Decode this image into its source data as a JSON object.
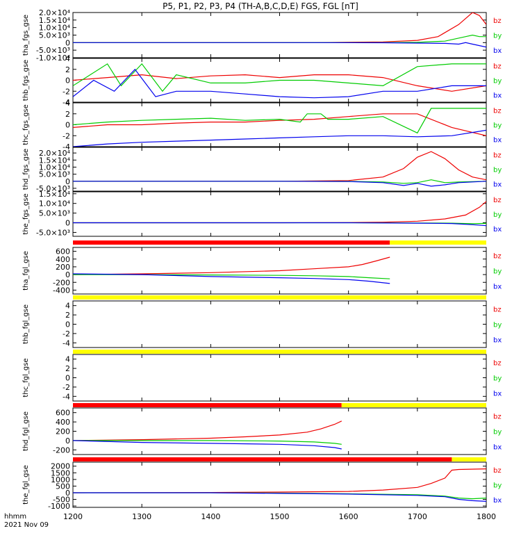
{
  "title": "P5, P1, P2, P3, P4 (TH-A,B,C,D,E) FGS, FGL [nT]",
  "footer": {
    "time_label": "hhmm",
    "date_label": "2021 Nov 09"
  },
  "colors": {
    "bx": "#0000ee",
    "by": "#00cc00",
    "bz": "#ee0000",
    "bar_red": "#ff0000",
    "bar_yellow": "#ffff00",
    "axis": "#000000"
  },
  "chart_data": {
    "type": "line",
    "x_ticks": [
      1200,
      1300,
      1400,
      1500,
      1600,
      1700,
      1800
    ],
    "x_range": [
      1200,
      1800
    ],
    "legend": [
      "bz",
      "by",
      "bx"
    ],
    "panels": [
      {
        "ylabel": "tha_fgs_gse",
        "yticks": [
          "2.0×10⁴",
          "1.5×10⁴",
          "1.0×10⁴",
          "5.0×10³",
          "0",
          "-5.0×10³",
          "-1.0×10⁴"
        ],
        "ylim": [
          -10000,
          20000
        ],
        "series": [
          {
            "name": "bz",
            "x": [
              1200,
              1550,
              1650,
              1700,
              1730,
              1760,
              1780,
              1790,
              1800
            ],
            "y": [
              0,
              0,
              500,
              1500,
              4000,
              12000,
              20000,
              18000,
              12000
            ]
          },
          {
            "name": "by",
            "x": [
              1200,
              1550,
              1650,
              1700,
              1740,
              1770,
              1780,
              1790,
              1800
            ],
            "y": [
              0,
              0,
              0,
              200,
              1000,
              4000,
              5000,
              4000,
              4000
            ]
          },
          {
            "name": "bx",
            "x": [
              1200,
              1550,
              1650,
              1700,
              1740,
              1760,
              1770,
              1780,
              1800
            ],
            "y": [
              0,
              0,
              -100,
              -300,
              -500,
              -1000,
              0,
              -1000,
              -3000
            ]
          }
        ]
      },
      {
        "ylabel": "thb_fgs_gse",
        "yticks": [
          "4",
          "2",
          "0",
          "-2",
          "-4"
        ],
        "ylim": [
          -4,
          4
        ],
        "series": [
          {
            "name": "bz",
            "x": [
              1200,
              1250,
              1300,
              1350,
              1400,
              1450,
              1500,
              1550,
              1600,
              1650,
              1700,
              1750,
              1800
            ],
            "y": [
              0,
              0.5,
              1,
              0.3,
              0.8,
              1,
              0.5,
              1,
              1,
              0.5,
              -1,
              -2,
              -1
            ]
          },
          {
            "name": "by",
            "x": [
              1200,
              1250,
              1270,
              1300,
              1330,
              1350,
              1400,
              1450,
              1500,
              1550,
              1600,
              1650,
              1700,
              1750,
              1800
            ],
            "y": [
              -1,
              3,
              -1,
              3,
              -2,
              1,
              -0.5,
              -0.5,
              0,
              0,
              -0.5,
              -1,
              2.5,
              3,
              3
            ]
          },
          {
            "name": "bx",
            "x": [
              1200,
              1230,
              1260,
              1290,
              1320,
              1350,
              1400,
              1450,
              1500,
              1550,
              1600,
              1650,
              1700,
              1750,
              1800
            ],
            "y": [
              -3,
              0,
              -2,
              2,
              -3,
              -2,
              -2,
              -2.5,
              -3,
              -3.2,
              -3,
              -2,
              -2,
              -1,
              -1
            ]
          }
        ]
      },
      {
        "ylabel": "thc_fgs_gse",
        "yticks": [
          "4",
          "2",
          "0",
          "-2",
          "-4"
        ],
        "ylim": [
          -4,
          4
        ],
        "series": [
          {
            "name": "bz",
            "x": [
              1200,
              1250,
              1300,
              1350,
              1400,
              1450,
              1500,
              1550,
              1600,
              1650,
              1700,
              1750,
              1800
            ],
            "y": [
              -0.5,
              0,
              0,
              0.3,
              0.5,
              0.5,
              0.8,
              1,
              1.5,
              2,
              2,
              -0.5,
              -2
            ]
          },
          {
            "name": "by",
            "x": [
              1200,
              1250,
              1300,
              1350,
              1400,
              1450,
              1500,
              1530,
              1540,
              1560,
              1570,
              1600,
              1650,
              1700,
              1720,
              1750,
              1800
            ],
            "y": [
              0,
              0.5,
              0.8,
              1,
              1.2,
              0.8,
              1,
              0.5,
              2,
              2,
              1,
              1,
              1.5,
              -1.5,
              3,
              3,
              3
            ]
          },
          {
            "name": "bx",
            "x": [
              1200,
              1250,
              1300,
              1350,
              1400,
              1450,
              1500,
              1550,
              1600,
              1650,
              1700,
              1750,
              1800
            ],
            "y": [
              -4,
              -3.5,
              -3.2,
              -3,
              -2.8,
              -2.6,
              -2.4,
              -2.2,
              -2,
              -2,
              -2.2,
              -2,
              -1
            ]
          }
        ]
      },
      {
        "ylabel": "thd_fgs_gse",
        "yticks": [
          "2.0×10⁴",
          "1.5×10⁴",
          "1.0×10⁴",
          "5.0×10³",
          "0",
          "-5.0×10³"
        ],
        "ylim": [
          -7000,
          24000
        ],
        "series": [
          {
            "name": "bz",
            "x": [
              1200,
              1500,
              1600,
              1650,
              1680,
              1700,
              1720,
              1740,
              1760,
              1780,
              1800
            ],
            "y": [
              0,
              0,
              500,
              3000,
              9000,
              17000,
              21000,
              16000,
              8000,
              3000,
              1000
            ]
          },
          {
            "name": "by",
            "x": [
              1200,
              1500,
              1600,
              1650,
              1680,
              1700,
              1720,
              1740,
              1760,
              1800
            ],
            "y": [
              0,
              0,
              -100,
              -500,
              -1500,
              -1000,
              1000,
              -1000,
              -500,
              0
            ]
          },
          {
            "name": "bx",
            "x": [
              1200,
              1500,
              1600,
              1650,
              1680,
              1700,
              1720,
              1740,
              1760,
              1800
            ],
            "y": [
              0,
              0,
              -200,
              -1000,
              -3000,
              -1500,
              -3500,
              -2500,
              -1000,
              0
            ]
          }
        ]
      },
      {
        "ylabel": "the_fgs_gse",
        "yticks": [
          "1.5×10⁴",
          "1.0×10⁴",
          "5.0×10³",
          "0",
          "-5.0×10³"
        ],
        "ylim": [
          -7000,
          16000
        ],
        "series": [
          {
            "name": "bz",
            "x": [
              1200,
              1500,
              1600,
              1650,
              1700,
              1740,
              1770,
              1790,
              1800
            ],
            "y": [
              0,
              0,
              100,
              300,
              800,
              2000,
              4000,
              8000,
              11000
            ]
          },
          {
            "name": "by",
            "x": [
              1200,
              1600,
              1700,
              1750,
              1780,
              1800
            ],
            "y": [
              0,
              0,
              -100,
              -200,
              -500,
              -300
            ]
          },
          {
            "name": "bx",
            "x": [
              1200,
              1600,
              1700,
              1750,
              1780,
              1800
            ],
            "y": [
              0,
              0,
              -200,
              -400,
              -1000,
              -1500
            ]
          }
        ]
      },
      {
        "ylabel": "tha_fgl_gse",
        "yticks": [
          "600",
          "400",
          "200",
          "0",
          "-200",
          "-400"
        ],
        "ylim": [
          -500,
          700
        ],
        "bar_red_end": 1660,
        "series": [
          {
            "name": "bz",
            "x": [
              1200,
              1300,
              1400,
              1500,
              1550,
              1600,
              1620,
              1640,
              1660
            ],
            "y": [
              0,
              20,
              50,
              100,
              150,
              200,
              260,
              350,
              450
            ]
          },
          {
            "name": "by",
            "x": [
              1200,
              1300,
              1400,
              1500,
              1550,
              1600,
              1630,
              1660
            ],
            "y": [
              0,
              0,
              -10,
              -20,
              -30,
              -50,
              -80,
              -110
            ]
          },
          {
            "name": "bx",
            "x": [
              1200,
              1300,
              1400,
              1500,
              1550,
              1600,
              1630,
              1660
            ],
            "y": [
              20,
              0,
              -50,
              -80,
              -100,
              -130,
              -170,
              -230
            ]
          }
        ]
      },
      {
        "ylabel": "thb_fgl_gse",
        "yticks": [
          "4",
          "2",
          "0",
          "-2",
          "-4"
        ],
        "ylim": [
          -5,
          5
        ],
        "series": []
      },
      {
        "ylabel": "thc_fgl_gse",
        "yticks": [
          "4",
          "2",
          "0",
          "-2",
          "-4"
        ],
        "ylim": [
          -5,
          5
        ],
        "series": []
      },
      {
        "ylabel": "thd_fgl_gse",
        "yticks": [
          "600",
          "400",
          "200",
          "0",
          "-200"
        ],
        "ylim": [
          -300,
          700
        ],
        "bar_red_end": 1590,
        "series": [
          {
            "name": "bz",
            "x": [
              1200,
              1300,
              1400,
              1450,
              1500,
              1540,
              1560,
              1580,
              1590
            ],
            "y": [
              0,
              20,
              50,
              80,
              120,
              180,
              250,
              350,
              420
            ]
          },
          {
            "name": "by",
            "x": [
              1200,
              1300,
              1400,
              1500,
              1550,
              1580,
              1590
            ],
            "y": [
              0,
              0,
              0,
              -10,
              -30,
              -60,
              -80
            ]
          },
          {
            "name": "bx",
            "x": [
              1200,
              1300,
              1400,
              1500,
              1550,
              1580,
              1590
            ],
            "y": [
              0,
              -40,
              -60,
              -80,
              -110,
              -150,
              -180
            ]
          }
        ]
      },
      {
        "ylabel": "the_fgl_gse",
        "yticks": [
          "2000",
          "1500",
          "1000",
          "500",
          "0",
          "-500",
          "-1000"
        ],
        "ylim": [
          -1100,
          2300
        ],
        "bar_red_end": 1750,
        "series": [
          {
            "name": "bz",
            "x": [
              1200,
              1400,
              1500,
              1600,
              1650,
              1700,
              1720,
              1740,
              1750,
              1760,
              1800
            ],
            "y": [
              0,
              20,
              50,
              100,
              200,
              400,
              700,
              1100,
              1700,
              1750,
              1800
            ]
          },
          {
            "name": "by",
            "x": [
              1200,
              1400,
              1500,
              1600,
              1700,
              1740,
              1760,
              1780,
              1800
            ],
            "y": [
              0,
              0,
              -30,
              -80,
              -150,
              -250,
              -400,
              -450,
              -400
            ]
          },
          {
            "name": "bx",
            "x": [
              1200,
              1400,
              1500,
              1600,
              1700,
              1740,
              1760,
              1780,
              1800
            ],
            "y": [
              0,
              0,
              -50,
              -100,
              -200,
              -300,
              -500,
              -600,
              -650
            ]
          }
        ]
      }
    ]
  }
}
